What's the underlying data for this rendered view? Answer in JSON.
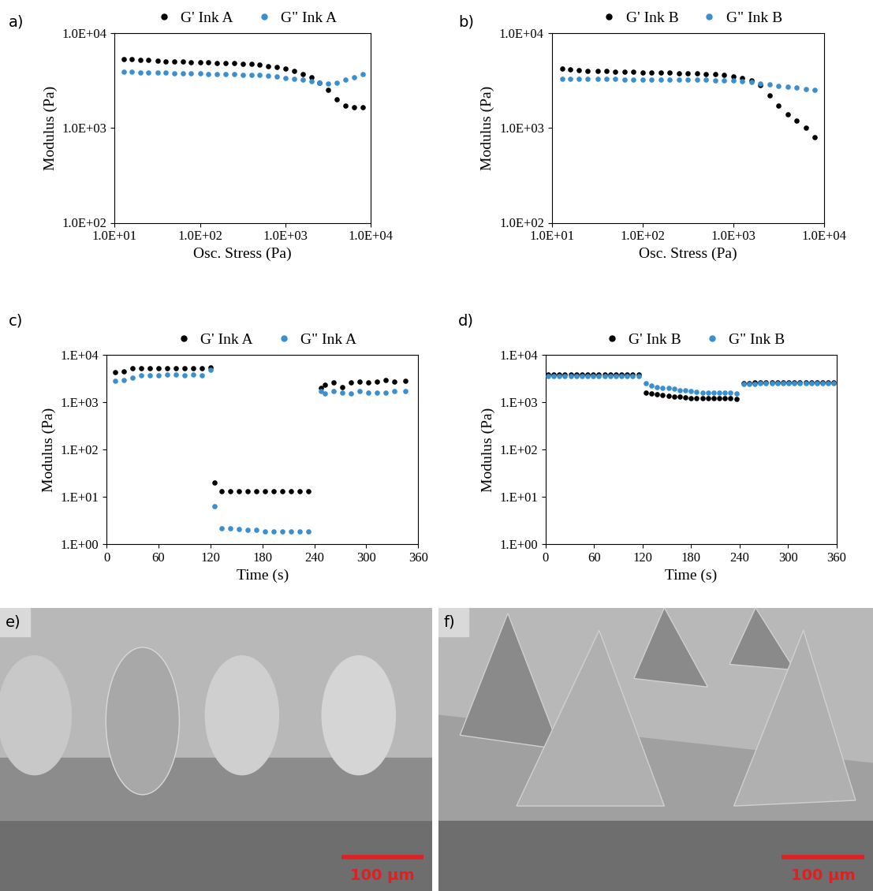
{
  "chart_data": [
    {
      "type": "scatter",
      "title": "a)",
      "x_label": "Osc. Stress (Pa)",
      "y_label": "Modulus (Pa)",
      "log": true,
      "legend": "lower center",
      "marker": "circle",
      "xlim": [
        10,
        10000
      ],
      "ylim": [
        100,
        10000
      ],
      "xticks": [
        {
          "value": 10,
          "label": "1.0E+01"
        },
        {
          "value": 100,
          "label": "1.0E+02"
        },
        {
          "value": 1000,
          "label": "1.0E+03"
        },
        {
          "value": 10000,
          "label": "1.0E+04"
        }
      ],
      "yticks": [
        {
          "value": 100,
          "label": "1.0E+02"
        },
        {
          "value": 1000,
          "label": "1.0E+03"
        },
        {
          "value": 10000,
          "label": "1.0E+04"
        }
      ],
      "x": [
        13,
        16,
        20,
        25,
        32,
        40,
        50,
        63,
        79,
        100,
        126,
        158,
        200,
        251,
        316,
        398,
        501,
        631,
        794,
        1000,
        1259,
        1585,
        1995,
        2512,
        3162,
        3981,
        5012,
        6310,
        7943
      ],
      "series": [
        {
          "name": "G' Ink A",
          "color": "#000000",
          "values": [
            5300,
            5250,
            5200,
            5150,
            5100,
            5050,
            5000,
            4980,
            4950,
            4900,
            4880,
            4850,
            4800,
            4780,
            4750,
            4700,
            4600,
            4500,
            4400,
            4200,
            4000,
            3700,
            3400,
            3000,
            2500,
            2000,
            1700,
            1650,
            1650
          ]
        },
        {
          "name": "G\" Ink A",
          "color": "#3a8fd0",
          "values": [
            3900,
            3880,
            3860,
            3840,
            3820,
            3800,
            3780,
            3760,
            3740,
            3720,
            3700,
            3690,
            3680,
            3660,
            3640,
            3620,
            3580,
            3520,
            3450,
            3380,
            3300,
            3200,
            3100,
            3000,
            2950,
            3000,
            3200,
            3400,
            3700
          ]
        }
      ]
    },
    {
      "type": "scatter",
      "title": "b)",
      "x_label": "Osc. Stress (Pa)",
      "y_label": "Modulus (Pa)",
      "log": true,
      "legend": "lower center",
      "marker": "circle",
      "xlim": [
        10,
        10000
      ],
      "ylim": [
        100,
        10000
      ],
      "xticks": [
        {
          "value": 10,
          "label": "1.0E+01"
        },
        {
          "value": 100,
          "label": "1.0E+02"
        },
        {
          "value": 1000,
          "label": "1.0E+03"
        },
        {
          "value": 10000,
          "label": "1.0E+04"
        }
      ],
      "yticks": [
        {
          "value": 100,
          "label": "1.0E+02"
        },
        {
          "value": 1000,
          "label": "1.0E+03"
        },
        {
          "value": 10000,
          "label": "1.0E+04"
        }
      ],
      "x": [
        13,
        16,
        20,
        25,
        32,
        40,
        50,
        63,
        79,
        100,
        126,
        158,
        200,
        251,
        316,
        398,
        501,
        631,
        794,
        1000,
        1259,
        1585,
        1995,
        2512,
        3162,
        3981,
        5012,
        6310,
        7943
      ],
      "series": [
        {
          "name": "G' Ink B",
          "color": "#000000",
          "values": [
            4200,
            4100,
            4050,
            4000,
            3980,
            3950,
            3920,
            3900,
            3880,
            3860,
            3840,
            3820,
            3800,
            3780,
            3750,
            3720,
            3700,
            3650,
            3600,
            3500,
            3350,
            3150,
            2800,
            2200,
            1700,
            1400,
            1200,
            1000,
            800
          ]
        },
        {
          "name": "G\" Ink B",
          "color": "#3a8fd0",
          "values": [
            3300,
            3300,
            3290,
            3280,
            3270,
            3260,
            3260,
            3250,
            3250,
            3240,
            3240,
            3230,
            3230,
            3220,
            3220,
            3210,
            3200,
            3190,
            3180,
            3150,
            3100,
            3050,
            2950,
            2850,
            2750,
            2700,
            2650,
            2550,
            2500
          ]
        }
      ]
    },
    {
      "type": "scatter",
      "title": "c)",
      "x_label": "Time (s)",
      "y_label": "Modulus (Pa)",
      "log": "y",
      "legend": "lower center",
      "marker": "circle",
      "xlim": [
        0,
        360
      ],
      "ylim": [
        1,
        10000
      ],
      "xticks": [
        0,
        60,
        120,
        180,
        240,
        300,
        360
      ],
      "yticks": [
        {
          "value": 1,
          "label": "1.E+00"
        },
        {
          "value": 10,
          "label": "1.E+01"
        },
        {
          "value": 100,
          "label": "1.E+02"
        },
        {
          "value": 1000,
          "label": "1.E+03"
        },
        {
          "value": 10000,
          "label": "1.E+04"
        }
      ],
      "x": [
        10,
        20,
        30,
        40,
        50,
        60,
        70,
        80,
        90,
        100,
        110,
        120,
        125,
        133,
        143,
        153,
        163,
        173,
        183,
        193,
        203,
        213,
        223,
        233,
        248,
        252,
        262,
        272,
        282,
        292,
        302,
        312,
        322,
        332,
        345
      ],
      "series": [
        {
          "name": "G' Ink A",
          "color": "#000000",
          "values": [
            4300,
            4500,
            5200,
            5200,
            5200,
            5200,
            5200,
            5200,
            5200,
            5200,
            5200,
            5400,
            20,
            13,
            13,
            13,
            13,
            13,
            13,
            13,
            13,
            13,
            13,
            13,
            2000,
            2300,
            2600,
            2100,
            2600,
            2700,
            2600,
            2700,
            2900,
            2700,
            2800
          ]
        },
        {
          "name": "G\" Ink A",
          "color": "#3a8fd0",
          "values": [
            2800,
            2900,
            3300,
            3700,
            3700,
            3700,
            3800,
            3800,
            3700,
            3800,
            3700,
            4800,
            6.5,
            2.2,
            2.2,
            2.1,
            2.0,
            2.0,
            1.9,
            1.9,
            1.9,
            1.9,
            1.9,
            1.9,
            1700,
            1500,
            1700,
            1600,
            1500,
            1700,
            1600,
            1600,
            1600,
            1700,
            1700
          ]
        }
      ]
    },
    {
      "type": "scatter",
      "title": "d)",
      "x_label": "Time (s)",
      "y_label": "Modulus (Pa)",
      "log": "y",
      "legend": "lower center",
      "marker": "circle",
      "xlim": [
        0,
        360
      ],
      "ylim": [
        1,
        10000
      ],
      "xticks": [
        0,
        60,
        120,
        180,
        240,
        300,
        360
      ],
      "yticks": [
        {
          "value": 1,
          "label": "1.E+00"
        },
        {
          "value": 10,
          "label": "1.E+01"
        },
        {
          "value": 100,
          "label": "1.E+02"
        },
        {
          "value": 1000,
          "label": "1.E+03"
        },
        {
          "value": 10000,
          "label": "1.E+04"
        }
      ],
      "x": [
        3,
        10,
        17,
        24,
        31,
        38,
        45,
        52,
        59,
        66,
        73,
        80,
        87,
        94,
        101,
        108,
        115,
        124,
        131,
        138,
        145,
        152,
        159,
        166,
        173,
        180,
        187,
        194,
        201,
        208,
        215,
        222,
        229,
        236,
        245,
        252,
        259,
        266,
        273,
        280,
        287,
        294,
        301,
        308,
        315,
        322,
        329,
        336,
        343,
        350,
        357
      ],
      "series": [
        {
          "name": "G' Ink B",
          "color": "#000000",
          "values": [
            3800,
            3800,
            3800,
            3800,
            3800,
            3800,
            3800,
            3800,
            3800,
            3800,
            3800,
            3800,
            3800,
            3800,
            3800,
            3800,
            3800,
            1600,
            1500,
            1450,
            1400,
            1350,
            1300,
            1280,
            1250,
            1230,
            1200,
            1200,
            1200,
            1200,
            1220,
            1230,
            1200,
            1150,
            2500,
            2500,
            2550,
            2550,
            2600,
            2600,
            2600,
            2600,
            2600,
            2600,
            2600,
            2600,
            2600,
            2600,
            2600,
            2600,
            2600
          ]
        },
        {
          "name": "G\" Ink B",
          "color": "#3a8fd0",
          "values": [
            3500,
            3500,
            3500,
            3500,
            3500,
            3500,
            3500,
            3500,
            3500,
            3500,
            3500,
            3500,
            3500,
            3500,
            3500,
            3500,
            3500,
            2500,
            2200,
            2100,
            2000,
            1950,
            1900,
            1800,
            1750,
            1700,
            1650,
            1600,
            1550,
            1550,
            1600,
            1600,
            1600,
            1500,
            2400,
            2400,
            2400,
            2450,
            2450,
            2450,
            2450,
            2450,
            2450,
            2450,
            2450,
            2450,
            2450,
            2450,
            2450,
            2450,
            2450
          ]
        }
      ]
    }
  ],
  "images": [
    {
      "title": "e)",
      "scale_bar": "100 µm"
    },
    {
      "title": "f)",
      "scale_bar": "100 µm"
    }
  ]
}
